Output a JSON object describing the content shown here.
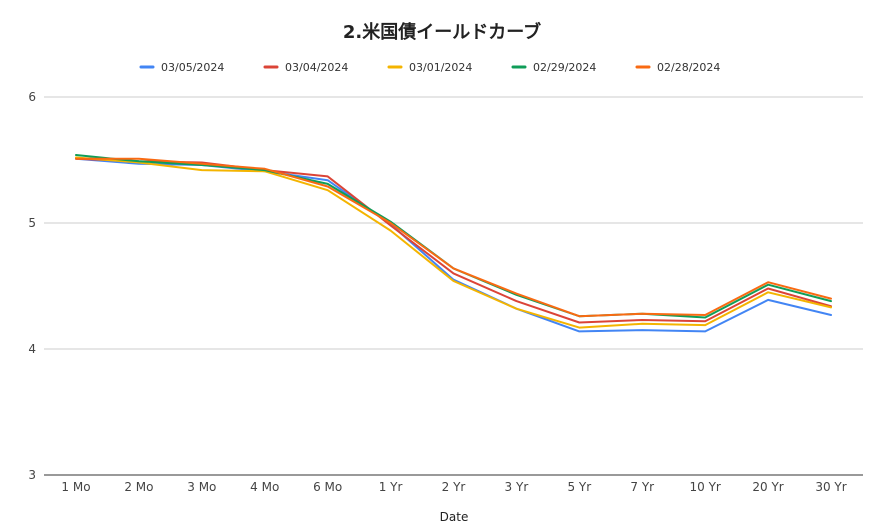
{
  "chart_data": {
    "type": "line",
    "title": "2.米国債イールドカーブ",
    "xlabel": "Date",
    "ylabel": "",
    "categories": [
      "1 Mo",
      "2 Mo",
      "3 Mo",
      "4 Mo",
      "6 Mo",
      "1 Yr",
      "2 Yr",
      "3 Yr",
      "5 Yr",
      "7 Yr",
      "10 Yr",
      "20 Yr",
      "30 Yr"
    ],
    "ylim": [
      3,
      6
    ],
    "yticks": [
      3,
      4,
      5,
      6
    ],
    "grid": true,
    "legend_position": "top",
    "series": [
      {
        "name": "03/05/2024",
        "color": "#4285F4",
        "values": [
          5.51,
          5.47,
          5.46,
          5.41,
          5.34,
          4.99,
          4.55,
          4.32,
          4.14,
          4.15,
          4.14,
          4.39,
          4.27
        ]
      },
      {
        "name": "03/04/2024",
        "color": "#DB4437",
        "values": [
          5.51,
          5.49,
          5.48,
          5.42,
          5.37,
          4.98,
          4.6,
          4.38,
          4.21,
          4.23,
          4.22,
          4.48,
          4.34
        ]
      },
      {
        "name": "03/01/2024",
        "color": "#F4B400",
        "values": [
          5.52,
          5.48,
          5.42,
          5.41,
          5.26,
          4.94,
          4.54,
          4.32,
          4.17,
          4.2,
          4.19,
          4.45,
          4.33
        ]
      },
      {
        "name": "02/29/2024",
        "color": "#0F9D58",
        "values": [
          5.54,
          5.49,
          5.46,
          5.42,
          5.31,
          5.01,
          4.64,
          4.43,
          4.26,
          4.28,
          4.25,
          4.51,
          4.38
        ]
      },
      {
        "name": "02/28/2024",
        "color": "#F96A12",
        "values": [
          5.51,
          5.51,
          5.47,
          5.43,
          5.29,
          5.0,
          4.64,
          4.44,
          4.26,
          4.28,
          4.27,
          4.53,
          4.4
        ]
      }
    ]
  }
}
